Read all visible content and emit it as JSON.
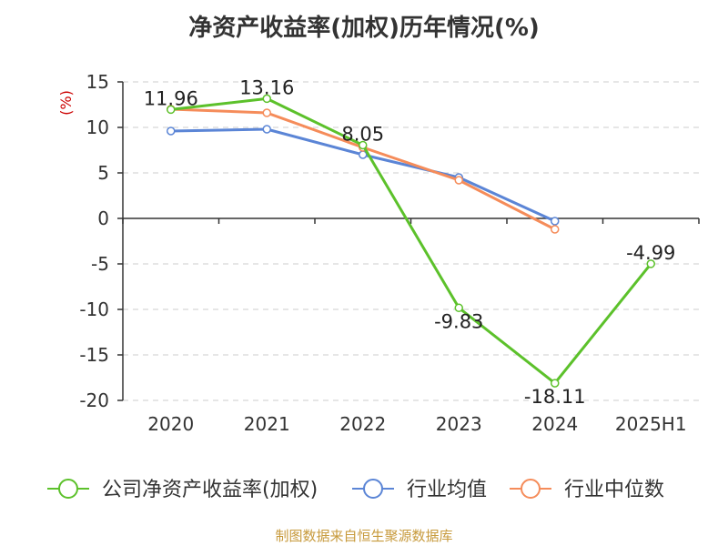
{
  "title": "净资产收益率(加权)历年情况(%)",
  "source": "制图数据来自恒生聚源数据库",
  "chart_data": {
    "type": "line",
    "title": "净资产收益率(加权)历年情况(%)",
    "ylabel": "(%)",
    "xlabel": "",
    "categories": [
      "2020",
      "2021",
      "2022",
      "2023",
      "2024",
      "2025H1"
    ],
    "ylim": [
      -20,
      15
    ],
    "yticks": [
      15,
      10,
      5,
      0,
      -5,
      -10,
      -15,
      -20
    ],
    "ytick_labels": [
      "15",
      "10",
      "5",
      "0",
      "-5",
      "-10",
      "-15",
      "-20"
    ],
    "grid": "horizontal dashed",
    "legend_position": "bottom",
    "series": [
      {
        "name": "公司净资产收益率(加权)",
        "color": "#5cc12b",
        "values": [
          11.96,
          13.16,
          8.05,
          -9.83,
          -18.11,
          -4.99
        ],
        "labels": [
          "11.96",
          "13.16",
          "8.05",
          "-9.83",
          "-18.11",
          "-4.99"
        ]
      },
      {
        "name": "行业均值",
        "color": "#5b85d6",
        "values": [
          9.6,
          9.8,
          7.0,
          4.5,
          -0.3,
          null
        ]
      },
      {
        "name": "行业中位数",
        "color": "#f58c5a",
        "values": [
          12.0,
          11.6,
          7.8,
          4.2,
          -1.2,
          null
        ]
      }
    ]
  }
}
